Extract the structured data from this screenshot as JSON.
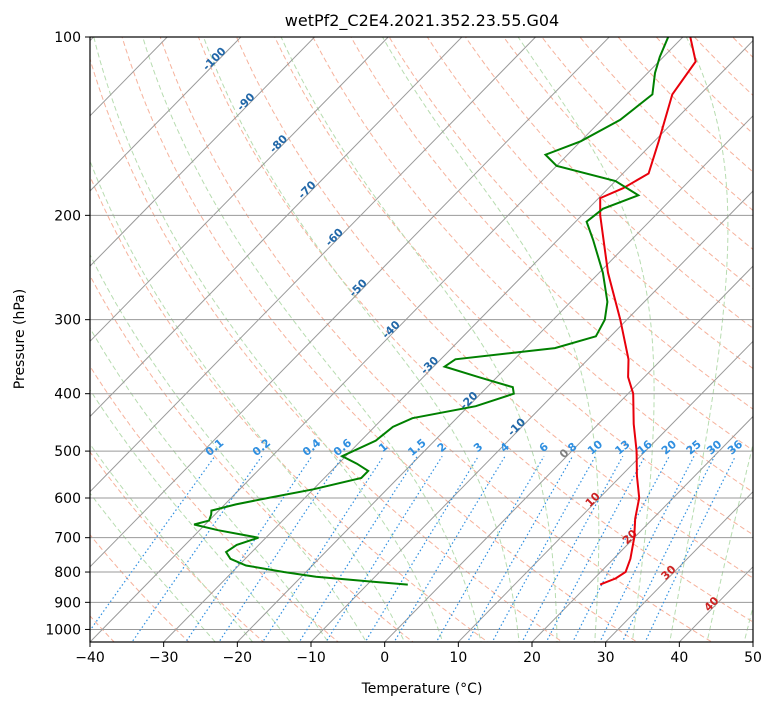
{
  "chart_data": {
    "type": "line",
    "subtype": "skew-t log-p diagram",
    "title": "wetPf2_C2E4.2021.352.23.55.G04",
    "xlabel": "Temperature (°C)",
    "ylabel": "Pressure (hPa)",
    "xlim": [
      -40,
      50
    ],
    "ylim_hpa": [
      1050,
      100
    ],
    "y_scale": "log",
    "grid": true,
    "legend": "none",
    "x_ticks": [
      "−40",
      "−30",
      "−20",
      "−10",
      "0",
      "10",
      "20",
      "30",
      "40",
      "50"
    ],
    "x_tick_values": [
      -40,
      -30,
      -20,
      -10,
      0,
      10,
      20,
      30,
      40,
      50
    ],
    "y_ticks": [
      "100",
      "200",
      "300",
      "400",
      "500",
      "600",
      "700",
      "800",
      "900",
      "1000"
    ],
    "y_tick_values": [
      100,
      200,
      300,
      400,
      500,
      600,
      700,
      800,
      900,
      1000
    ],
    "colors": {
      "temperature": "#e8000b",
      "dewpoint": "#008000",
      "isotherm": "#9a9a9a",
      "isobar": "#9a9a9a",
      "dry_adiabat": "#f5a58b",
      "moist_adiabat": "#b7dcb0",
      "mixing_ratio": "#2f8fe0",
      "isotherm_label_neg": "#2167a8",
      "isotherm_label_pos": "#cc2222",
      "isotherm_label_zero": "#808080"
    },
    "isotherm_labels": [
      "-100",
      "-90",
      "-80",
      "-70",
      "-60",
      "-50",
      "-40",
      "-30",
      "-20",
      "-10",
      "0",
      "10",
      "20",
      "30",
      "40"
    ],
    "isotherm_label_values": [
      -100,
      -90,
      -80,
      -70,
      -60,
      -50,
      -40,
      -30,
      -20,
      -10,
      0,
      10,
      20,
      30,
      40
    ],
    "mixing_ratio_labels": [
      "0.1",
      "0.2",
      "0.4",
      "0.6",
      "1",
      "1.5",
      "2",
      "3",
      "4",
      "6",
      "8",
      "10",
      "13",
      "16",
      "20",
      "25",
      "30",
      "36"
    ],
    "mixing_ratio_values": [
      0.1,
      0.2,
      0.4,
      0.6,
      1,
      1.5,
      2,
      3,
      4,
      6,
      8,
      10,
      13,
      16,
      20,
      25,
      30,
      36
    ],
    "series": [
      {
        "name": "",
        "role": "temperature",
        "points": [
          {
            "p": 840,
            "t": 21.6
          },
          {
            "p": 820,
            "t": 22.9
          },
          {
            "p": 800,
            "t": 23.4
          },
          {
            "p": 760,
            "t": 22.3
          },
          {
            "p": 700,
            "t": 20.0
          },
          {
            "p": 650,
            "t": 17.6
          },
          {
            "p": 600,
            "t": 15.4
          },
          {
            "p": 550,
            "t": 12.1
          },
          {
            "p": 500,
            "t": 8.8
          },
          {
            "p": 450,
            "t": 4.8
          },
          {
            "p": 400,
            "t": 0.7
          },
          {
            "p": 375,
            "t": -2.2
          },
          {
            "p": 350,
            "t": -4.5
          },
          {
            "p": 300,
            "t": -10.9
          },
          {
            "p": 250,
            "t": -18.8
          },
          {
            "p": 200,
            "t": -27.5
          },
          {
            "p": 187,
            "t": -29.8
          },
          {
            "p": 180,
            "t": -28.0
          },
          {
            "p": 170,
            "t": -26.5
          },
          {
            "p": 150,
            "t": -29.4
          },
          {
            "p": 125,
            "t": -33.8
          },
          {
            "p": 110,
            "t": -35.0
          },
          {
            "p": 100,
            "t": -39.0
          }
        ]
      },
      {
        "name": "",
        "role": "dewpoint",
        "points": [
          {
            "p": 840,
            "td": -4.5
          },
          {
            "p": 830,
            "td": -10.0
          },
          {
            "p": 815,
            "td": -18.0
          },
          {
            "p": 800,
            "td": -23.0
          },
          {
            "p": 780,
            "td": -29.0
          },
          {
            "p": 760,
            "td": -32.0
          },
          {
            "p": 740,
            "td": -33.5
          },
          {
            "p": 720,
            "td": -33.0
          },
          {
            "p": 700,
            "td": -31.0
          },
          {
            "p": 680,
            "td": -37.5
          },
          {
            "p": 665,
            "td": -41.5
          },
          {
            "p": 655,
            "td": -40.0
          },
          {
            "p": 640,
            "td": -40.5
          },
          {
            "p": 630,
            "td": -41.0
          },
          {
            "p": 615,
            "td": -38.5
          },
          {
            "p": 600,
            "td": -35.0
          },
          {
            "p": 580,
            "td": -30.0
          },
          {
            "p": 555,
            "td": -25.0
          },
          {
            "p": 540,
            "td": -25.0
          },
          {
            "p": 525,
            "td": -27.5
          },
          {
            "p": 510,
            "td": -30.5
          },
          {
            "p": 480,
            "td": -28.0
          },
          {
            "p": 455,
            "td": -27.5
          },
          {
            "p": 440,
            "td": -26.0
          },
          {
            "p": 420,
            "td": -19.0
          },
          {
            "p": 400,
            "td": -15.5
          },
          {
            "p": 390,
            "td": -16.5
          },
          {
            "p": 375,
            "td": -22.5
          },
          {
            "p": 360,
            "td": -28.5
          },
          {
            "p": 350,
            "td": -28.0
          },
          {
            "p": 335,
            "td": -16.0
          },
          {
            "p": 320,
            "td": -12.0
          },
          {
            "p": 300,
            "td": -13.0
          },
          {
            "p": 280,
            "td": -15.0
          },
          {
            "p": 250,
            "td": -19.5
          },
          {
            "p": 220,
            "td": -25.2
          },
          {
            "p": 205,
            "td": -28.5
          },
          {
            "p": 195,
            "td": -28.0
          },
          {
            "p": 185,
            "td": -25.0
          },
          {
            "p": 175,
            "td": -30.0
          },
          {
            "p": 165,
            "td": -40.0
          },
          {
            "p": 158,
            "td": -43.0
          },
          {
            "p": 150,
            "td": -40.0
          },
          {
            "p": 138,
            "td": -37.5
          },
          {
            "p": 125,
            "td": -36.5
          },
          {
            "p": 115,
            "td": -39.0
          },
          {
            "p": 108,
            "td": -40.5
          },
          {
            "p": 100,
            "td": -42.0
          }
        ]
      }
    ]
  }
}
